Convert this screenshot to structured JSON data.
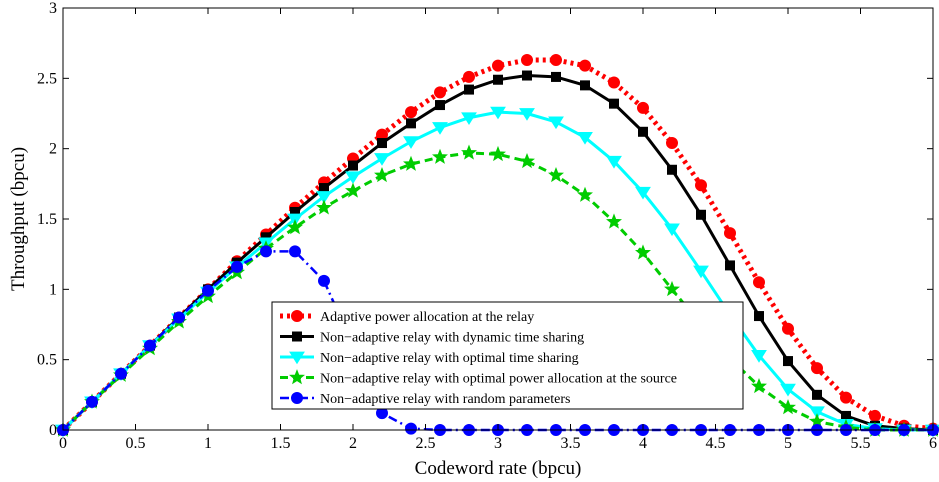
{
  "chart_data": {
    "type": "line",
    "xlabel": "Codeword rate (bpcu)",
    "ylabel": "Throughput (bpcu)",
    "xlim": [
      0,
      6
    ],
    "ylim": [
      0,
      3
    ],
    "xticks": [
      "0",
      "0.5",
      "1",
      "1.5",
      "2",
      "2.5",
      "3",
      "3.5",
      "4",
      "4.5",
      "5",
      "5.5",
      "6"
    ],
    "yticks": [
      "0",
      "0.5",
      "1",
      "1.5",
      "2",
      "2.5",
      "3"
    ],
    "grid": false,
    "legend_position": "lower-center",
    "x": [
      0,
      0.2,
      0.4,
      0.6,
      0.8,
      1.0,
      1.2,
      1.4,
      1.6,
      1.8,
      2.0,
      2.2,
      2.4,
      2.6,
      2.8,
      3.0,
      3.2,
      3.4,
      3.6,
      3.8,
      4.0,
      4.2,
      4.4,
      4.6,
      4.8,
      5.0,
      5.2,
      5.4,
      5.6,
      5.8,
      6.0
    ],
    "series": [
      {
        "name": "Adaptive power allocation at the relay",
        "color": "#ff0000",
        "marker": "circle",
        "line": "dotted",
        "values": [
          0,
          0.2,
          0.4,
          0.6,
          0.8,
          1.0,
          1.2,
          1.39,
          1.58,
          1.76,
          1.93,
          2.1,
          2.26,
          2.4,
          2.51,
          2.59,
          2.63,
          2.63,
          2.59,
          2.47,
          2.29,
          2.04,
          1.74,
          1.4,
          1.05,
          0.72,
          0.44,
          0.23,
          0.1,
          0.03,
          0.01
        ]
      },
      {
        "name": "Non−adaptive relay with dynamic time sharing",
        "color": "#000000",
        "marker": "square",
        "line": "solid",
        "values": [
          0,
          0.2,
          0.4,
          0.6,
          0.8,
          1.0,
          1.19,
          1.37,
          1.55,
          1.72,
          1.88,
          2.04,
          2.18,
          2.31,
          2.42,
          2.49,
          2.52,
          2.51,
          2.45,
          2.32,
          2.12,
          1.85,
          1.53,
          1.17,
          0.81,
          0.49,
          0.25,
          0.1,
          0.03,
          0.01,
          0
        ]
      },
      {
        "name": "Non−adaptive relay with optimal time sharing",
        "color": "#00ffff",
        "marker": "triangle-down",
        "line": "solid",
        "values": [
          0,
          0.2,
          0.4,
          0.6,
          0.79,
          0.98,
          1.16,
          1.33,
          1.5,
          1.66,
          1.8,
          1.93,
          2.05,
          2.15,
          2.22,
          2.26,
          2.25,
          2.19,
          2.08,
          1.91,
          1.69,
          1.43,
          1.13,
          0.82,
          0.53,
          0.29,
          0.13,
          0.04,
          0.01,
          0,
          0
        ]
      },
      {
        "name": "Non−adaptive relay with optimal power allocation at the source",
        "color": "#00cc00",
        "marker": "star",
        "line": "dashed",
        "values": [
          0,
          0.2,
          0.39,
          0.58,
          0.77,
          0.95,
          1.12,
          1.29,
          1.44,
          1.58,
          1.7,
          1.81,
          1.89,
          1.94,
          1.97,
          1.96,
          1.91,
          1.81,
          1.67,
          1.48,
          1.26,
          1.0,
          0.75,
          0.51,
          0.31,
          0.16,
          0.06,
          0.02,
          0,
          0,
          0
        ]
      },
      {
        "name": "Non−adaptive relay with random parameters",
        "color": "#0000ff",
        "marker": "circle",
        "line": "dashdot",
        "values": [
          0,
          0.2,
          0.4,
          0.6,
          0.8,
          0.99,
          1.16,
          1.27,
          1.27,
          1.06,
          0.6,
          0.12,
          0.01,
          0,
          0,
          0,
          0,
          0,
          0,
          0,
          0,
          0,
          0,
          0,
          0,
          0,
          0,
          0,
          0,
          0,
          0
        ]
      }
    ]
  }
}
